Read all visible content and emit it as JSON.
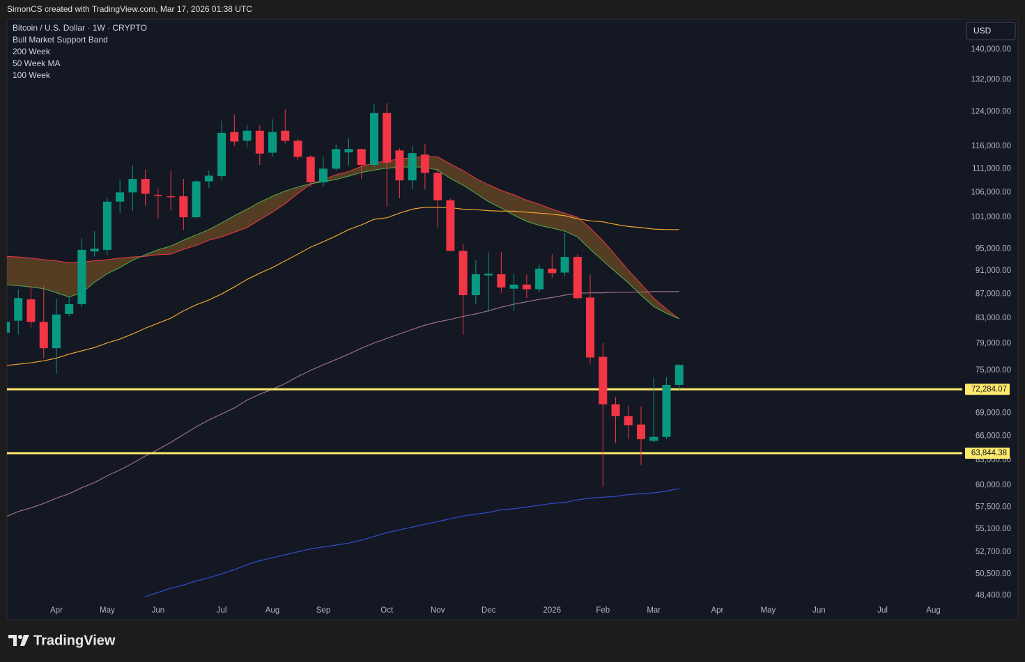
{
  "header": "SimonCS created with TradingView.com, Mar 17, 2026 01:38 UTC",
  "footer": {
    "logo": "TradingView"
  },
  "chart_data": {
    "type": "candlestick",
    "title": "Bitcoin / U.S. Dollar · 1W · CRYPTO",
    "currency": "USD",
    "log_scale": true,
    "grid": false,
    "up_color": "#089981",
    "down_color": "#f23645",
    "categories": [
      null,
      null,
      null,
      null,
      "Apr",
      null,
      null,
      null,
      "May",
      null,
      null,
      null,
      "Jun",
      null,
      null,
      null,
      null,
      "Jul",
      null,
      null,
      null,
      "Aug",
      null,
      null,
      null,
      "Sep",
      null,
      null,
      null,
      null,
      "Oct",
      null,
      null,
      null,
      "Nov",
      null,
      null,
      null,
      "Dec",
      null,
      null,
      null,
      null,
      "2026",
      null,
      null,
      null,
      "Feb",
      null,
      null,
      null,
      "Mar",
      null,
      null,
      null,
      null,
      "Apr",
      null,
      null,
      null,
      "May",
      null,
      null,
      null,
      "Jun",
      null,
      null,
      null,
      null,
      "Jul",
      null,
      null,
      null,
      "Aug",
      null,
      null
    ],
    "open": [
      80700,
      82600,
      86100,
      82400,
      78300,
      83700,
      85300,
      94500,
      94800,
      104100,
      106000,
      108800,
      105500,
      105200,
      105200,
      101000,
      108300,
      109400,
      119200,
      117200,
      119500,
      114500,
      119500,
      117200,
      113600,
      108100,
      111000,
      114600,
      115300,
      111800,
      123700,
      115000,
      108500,
      114100,
      110100,
      104400,
      94600,
      86800,
      90200,
      90400,
      87900,
      88600,
      87800,
      91400,
      90700,
      93500,
      86400,
      77000,
      70200,
      68600,
      67500,
      65400,
      65900,
      72900,
      null,
      null,
      null,
      null,
      null,
      null,
      null,
      null,
      null,
      null,
      null,
      null,
      null,
      null,
      null,
      null,
      null,
      null,
      null,
      null,
      null,
      null
    ],
    "high": [
      84000,
      87800,
      88400,
      88400,
      86200,
      86600,
      97000,
      98300,
      104900,
      108600,
      111700,
      110800,
      106800,
      110500,
      108800,
      108600,
      110600,
      121800,
      123400,
      120800,
      120800,
      122200,
      124600,
      117700,
      113900,
      113600,
      116300,
      117800,
      115400,
      125800,
      126100,
      115500,
      116000,
      116500,
      111300,
      104700,
      95900,
      92900,
      94300,
      94400,
      90500,
      90300,
      92100,
      94000,
      97900,
      94000,
      90300,
      79100,
      71200,
      70000,
      69900,
      74000,
      74000,
      75900,
      null,
      null,
      null,
      null,
      null,
      null,
      null,
      null,
      null,
      null,
      null,
      null,
      null,
      null,
      null,
      null,
      null,
      null,
      null,
      null,
      null,
      null
    ],
    "low": [
      79000,
      80400,
      81500,
      76800,
      74500,
      83300,
      84800,
      93600,
      93800,
      101800,
      102300,
      103300,
      100700,
      102300,
      98500,
      100700,
      106900,
      108600,
      116000,
      115700,
      111800,
      113600,
      116600,
      112900,
      107200,
      107200,
      110600,
      111600,
      108800,
      111300,
      103100,
      104800,
      106600,
      106600,
      99000,
      94600,
      80400,
      85300,
      84000,
      87200,
      84200,
      86300,
      87400,
      89700,
      90100,
      86100,
      76000,
      59800,
      65100,
      65600,
      62400,
      65200,
      65600,
      72200,
      null,
      null,
      null,
      null,
      null,
      null,
      null,
      null,
      null,
      null,
      null,
      null,
      null,
      null,
      null,
      null,
      null,
      null,
      null,
      null,
      null,
      null
    ],
    "close": [
      82400,
      86300,
      82400,
      78300,
      83600,
      85300,
      94800,
      95000,
      104100,
      106000,
      108800,
      105700,
      105300,
      105000,
      101000,
      108300,
      109500,
      119000,
      117000,
      119500,
      114300,
      119200,
      117200,
      113600,
      108100,
      111000,
      115300,
      115300,
      111800,
      123700,
      112300,
      108500,
      114400,
      110100,
      104400,
      94600,
      86800,
      90400,
      90500,
      88100,
      88600,
      87800,
      91400,
      90600,
      93500,
      86300,
      76900,
      70200,
      68600,
      67400,
      65600,
      65900,
      72900,
      75800,
      null,
      null,
      null,
      null,
      null,
      null,
      null,
      null,
      null,
      null,
      null,
      null,
      null,
      null,
      null,
      null,
      null,
      null,
      null,
      null,
      null,
      null
    ],
    "indicators": [
      {
        "name": "Bull Market Support Band",
        "fill_color": "#6b4a26",
        "lines": [
          {
            "color": "#f23645",
            "values": [
              93600,
              93500,
              93300,
              93000,
              92800,
              92400,
              92600,
              92800,
              93000,
              93300,
              93500,
              93600,
              93900,
              94000,
              94900,
              95600,
              96600,
              97200,
              98100,
              99000,
              100500,
              102000,
              103700,
              105800,
              107700,
              108700,
              109700,
              110400,
              111500,
              112200,
              112700,
              113100,
              113400,
              113700,
              113600,
              112000,
              110600,
              108900,
              107600,
              106400,
              105500,
              104400,
              103600,
              102600,
              101800,
              101000,
              98900,
              96500,
              93800,
              91100,
              88700,
              86300,
              84500,
              82900,
              null,
              null,
              null,
              null,
              null,
              null,
              null,
              null,
              null,
              null,
              null,
              null,
              null,
              null,
              null,
              null,
              null,
              null,
              null,
              null,
              null,
              null
            ]
          },
          {
            "color": "#4caf50",
            "values": [
              88600,
              88400,
              88200,
              87900,
              87200,
              86500,
              87200,
              89000,
              90500,
              91600,
              92900,
              93900,
              94800,
              95500,
              96600,
              97600,
              98600,
              99900,
              101300,
              102600,
              104000,
              105200,
              106300,
              107100,
              107800,
              108200,
              108700,
              109400,
              110200,
              110700,
              111100,
              111300,
              111400,
              111300,
              110700,
              108900,
              107500,
              105800,
              104100,
              102800,
              101400,
              100200,
              99400,
              98900,
              98300,
              97200,
              94900,
              92800,
              90800,
              88900,
              86800,
              84900,
              83800,
              82900,
              null,
              null,
              null,
              null,
              null,
              null,
              null,
              null,
              null,
              null,
              null,
              null,
              null,
              null,
              null,
              null,
              null,
              null,
              null,
              null,
              null,
              null
            ]
          }
        ]
      },
      {
        "name": "200 Week",
        "color": "#2f4fd1",
        "values": [
          null,
          null,
          null,
          null,
          null,
          null,
          null,
          null,
          null,
          null,
          null,
          48300,
          48700,
          49100,
          49400,
          49800,
          50100,
          50500,
          50900,
          51400,
          51800,
          52100,
          52400,
          52700,
          53000,
          53200,
          53400,
          53600,
          53900,
          54300,
          54700,
          55000,
          55300,
          55600,
          55900,
          56200,
          56500,
          56700,
          56900,
          57200,
          57300,
          57500,
          57700,
          57900,
          58000,
          58300,
          58500,
          58600,
          58700,
          58900,
          59000,
          59100,
          59300,
          59600,
          null,
          null,
          null,
          null,
          null,
          null,
          null,
          null,
          null,
          null,
          null,
          null,
          null,
          null,
          null,
          null,
          null,
          null,
          null,
          null,
          null,
          null
        ]
      },
      {
        "name": "50 Week MA",
        "color": "#f2a531",
        "values": [
          75700,
          75900,
          76100,
          76400,
          76800,
          77400,
          77900,
          78400,
          79100,
          79700,
          80500,
          81400,
          82200,
          83000,
          84200,
          85200,
          86000,
          87000,
          88200,
          89500,
          90600,
          91600,
          92800,
          94000,
          95300,
          96300,
          97400,
          98600,
          99500,
          100600,
          100900,
          101800,
          102600,
          103000,
          103000,
          102900,
          102600,
          102500,
          102300,
          102200,
          102200,
          102000,
          101800,
          101600,
          101300,
          100700,
          100300,
          100100,
          99600,
          99200,
          99000,
          98700,
          98600,
          98600,
          null,
          null,
          null,
          null,
          null,
          null,
          null,
          null,
          null,
          null,
          null,
          null,
          null,
          null,
          null,
          null,
          null,
          null,
          null,
          null,
          null,
          null
        ]
      },
      {
        "name": "100 Week",
        "color": "#9c6f86",
        "values": [
          56400,
          57000,
          57400,
          57900,
          58500,
          59000,
          59700,
          60300,
          61100,
          61800,
          62600,
          63500,
          64300,
          65200,
          66200,
          67200,
          68100,
          68900,
          69700,
          70800,
          71600,
          72300,
          73100,
          74100,
          75000,
          75800,
          76600,
          77400,
          78300,
          79100,
          79800,
          80500,
          81200,
          81900,
          82400,
          82800,
          83300,
          83700,
          84200,
          84800,
          85300,
          85700,
          86100,
          86400,
          86800,
          87100,
          87200,
          87200,
          87300,
          87300,
          87300,
          87400,
          87400,
          87400,
          null,
          null,
          null,
          null,
          null,
          null,
          null,
          null,
          null,
          null,
          null,
          null,
          null,
          null,
          null,
          null,
          null,
          null,
          null,
          null,
          null,
          null
        ]
      }
    ],
    "hlines": [
      {
        "value": 72284.07,
        "label": "72,284.07",
        "color": "#fde96b"
      },
      {
        "value": 63844.38,
        "label": "63,844.38",
        "color": "#fde96b"
      }
    ],
    "ylim": [
      46200,
      148350
    ],
    "yticks": [
      {
        "value": 140000,
        "label": "140,000.00"
      },
      {
        "value": 132000,
        "label": "132,000.00"
      },
      {
        "value": 124000,
        "label": "124,000.00"
      },
      {
        "value": 116000,
        "label": "116,000.00"
      },
      {
        "value": 111000,
        "label": "111,000.00"
      },
      {
        "value": 106000,
        "label": "106,000.00"
      },
      {
        "value": 101000,
        "label": "101,000.00"
      },
      {
        "value": 95000,
        "label": "95,000.00"
      },
      {
        "value": 91000,
        "label": "91,000.00"
      },
      {
        "value": 87000,
        "label": "87,000.00"
      },
      {
        "value": 83000,
        "label": "83,000.00"
      },
      {
        "value": 79000,
        "label": "79,000.00"
      },
      {
        "value": 75000,
        "label": "75,000.00"
      },
      {
        "value": 69000,
        "label": "69,000.00"
      },
      {
        "value": 66000,
        "label": "66,000.00"
      },
      {
        "value": 63000,
        "label": "63,000.00"
      },
      {
        "value": 60000,
        "label": "60,000.00"
      },
      {
        "value": 57500,
        "label": "57,500.00"
      },
      {
        "value": 55100,
        "label": "55,100.00"
      },
      {
        "value": 52700,
        "label": "52,700.00"
      },
      {
        "value": 50500,
        "label": "50,500.00"
      },
      {
        "value": 48400,
        "label": "48,400.00"
      }
    ]
  }
}
